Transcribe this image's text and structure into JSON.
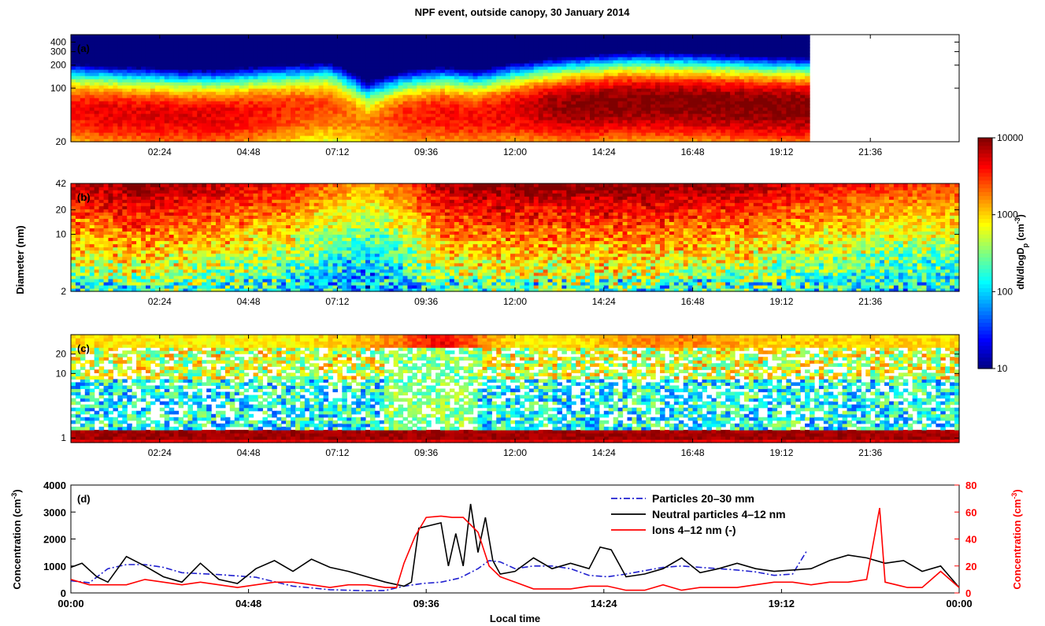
{
  "title": "NPF event, outside canopy, 30 January 2014",
  "y_label_shared": "Diameter  (nm)",
  "colors": {
    "colormap": [
      "#00007f",
      "#0000ff",
      "#007fff",
      "#00ffff",
      "#7fff7f",
      "#ffff00",
      "#ff7f00",
      "#ff0000",
      "#7f0000"
    ],
    "particles": "#2020d0",
    "neutral": "#000000",
    "ions": "#ff0000",
    "axis_right_d": "#ff0000"
  },
  "chart_data": [
    {
      "id": "a",
      "type": "heatmap",
      "panel_label": "(a)",
      "y_scale": "log",
      "ylim": [
        20,
        500
      ],
      "y_ticks": [
        20,
        100,
        200,
        300,
        400
      ],
      "x_ticks": [
        "02:24",
        "04:48",
        "07:12",
        "09:36",
        "12:00",
        "14:24",
        "16:48",
        "19:12",
        "21:36"
      ],
      "x_range_hours": [
        0,
        24
      ],
      "data_end_hour": 19.9,
      "time_hours": [
        0,
        1,
        2,
        3,
        4,
        5,
        6,
        7,
        8,
        9,
        10,
        11,
        12,
        13,
        14,
        15,
        16,
        17,
        18,
        19,
        19.9
      ],
      "mode_diameter_nm": [
        55,
        50,
        48,
        45,
        45,
        50,
        55,
        60,
        35,
        45,
        50,
        45,
        55,
        60,
        65,
        70,
        70,
        68,
        65,
        62,
        60
      ],
      "mode_level_log10": [
        3.6,
        3.7,
        3.7,
        3.7,
        3.7,
        3.6,
        3.5,
        3.4,
        3.2,
        3.5,
        3.6,
        3.6,
        3.7,
        3.9,
        4.0,
        4.0,
        4.0,
        4.0,
        4.0,
        4.0,
        4.0
      ]
    },
    {
      "id": "b",
      "type": "heatmap",
      "panel_label": "(b)",
      "y_scale": "log",
      "ylim": [
        2,
        42
      ],
      "y_ticks": [
        2,
        10,
        20,
        42
      ],
      "x_ticks": [
        "02:24",
        "04:48",
        "07:12",
        "09:36",
        "12:00",
        "14:24",
        "16:48",
        "19:12",
        "21:36"
      ],
      "x_range_hours": [
        0,
        24
      ],
      "time_hours": [
        0,
        1,
        2,
        3,
        4,
        5,
        6,
        7,
        8,
        9,
        10,
        11,
        12,
        13,
        14,
        15,
        16,
        17,
        18,
        19,
        20,
        21,
        22,
        23,
        24
      ],
      "upper_level_log10": [
        3.8,
        3.9,
        4.0,
        3.9,
        3.8,
        3.7,
        3.6,
        3.3,
        3.1,
        3.4,
        3.9,
        4.0,
        4.0,
        4.0,
        4.0,
        4.0,
        4.0,
        3.9,
        3.9,
        3.8,
        3.7,
        3.6,
        3.5,
        3.5,
        3.5
      ]
    },
    {
      "id": "c",
      "type": "heatmap",
      "panel_label": "(c)",
      "y_scale": "log",
      "ylim": [
        0.85,
        40
      ],
      "y_ticks": [
        1,
        10,
        20
      ],
      "x_ticks": [
        "02:24",
        "04:48",
        "07:12",
        "09:36",
        "12:00",
        "14:24",
        "16:48",
        "19:12",
        "21:36"
      ],
      "x_range_hours": [
        0,
        24
      ],
      "cluster_band_nm": [
        1.0,
        1.4
      ],
      "cluster_level_log10": 3.9,
      "time_hours": [
        0,
        2,
        4,
        6,
        8,
        9,
        10,
        11,
        12,
        14,
        16,
        18,
        20,
        22,
        24
      ],
      "upper_level_log10": [
        2.7,
        2.6,
        2.6,
        2.6,
        2.8,
        3.0,
        3.4,
        3.0,
        2.6,
        2.7,
        3.0,
        2.8,
        2.7,
        2.7,
        2.7
      ]
    },
    {
      "id": "d",
      "type": "line",
      "panel_label": "(d)",
      "xlabel": "Local time",
      "ylabel": "Concentration (cm",
      "ylabel_sup": "-3",
      "ylabel_end": ")",
      "ylabel_right": "Concentration (cm",
      "ylabel_right_sup": "-3",
      "ylabel_right_end": ")",
      "x_ticks": [
        "00:00",
        "04:48",
        "09:36",
        "14:24",
        "19:12",
        "00:00"
      ],
      "x_range_hours": [
        0,
        24
      ],
      "ylim": [
        0,
        4000
      ],
      "y_ticks": [
        0,
        1000,
        2000,
        3000,
        4000
      ],
      "ylim_right": [
        0,
        80
      ],
      "y_ticks_right": [
        0,
        20,
        40,
        60,
        80
      ],
      "series": [
        {
          "name": "Particles 20–30 mm",
          "axis": "left",
          "style": "dashdot",
          "x": [
            0,
            0.5,
            1,
            1.5,
            2,
            2.5,
            3,
            4,
            5,
            6,
            7,
            8,
            8.5,
            9,
            9.5,
            10,
            10.5,
            11,
            11.3,
            11.6,
            12,
            12.5,
            13,
            13.5,
            14,
            14.5,
            15,
            16,
            16.5,
            17,
            18,
            18.5,
            19,
            19.5,
            19.9
          ],
          "values": [
            450,
            380,
            900,
            1050,
            1050,
            950,
            750,
            680,
            580,
            250,
            120,
            80,
            90,
            250,
            350,
            400,
            550,
            900,
            1200,
            1150,
            900,
            1000,
            1000,
            900,
            650,
            600,
            700,
            950,
            1000,
            950,
            850,
            780,
            650,
            700,
            1600
          ]
        },
        {
          "name": "Neutral particles 4–12 nm",
          "axis": "left",
          "style": "solid",
          "x": [
            0,
            0.3,
            0.7,
            1,
            1.5,
            2,
            2.5,
            3,
            3.5,
            4,
            4.5,
            5,
            5.5,
            6,
            6.5,
            7,
            7.5,
            8,
            8.5,
            9,
            9.2,
            9.4,
            9.7,
            10,
            10.2,
            10.4,
            10.6,
            10.8,
            11,
            11.2,
            11.4,
            11.6,
            12,
            12.5,
            13,
            13.5,
            14,
            14.3,
            14.6,
            15,
            15.5,
            16,
            16.5,
            17,
            17.5,
            18,
            18.5,
            19,
            19.5,
            20,
            20.5,
            21,
            21.5,
            22,
            22.5,
            23,
            23.5,
            24
          ],
          "values": [
            950,
            1100,
            600,
            400,
            1350,
            1000,
            600,
            400,
            1100,
            500,
            350,
            900,
            1200,
            800,
            1250,
            950,
            800,
            600,
            400,
            250,
            400,
            2400,
            2500,
            2600,
            1000,
            2200,
            1000,
            3300,
            1500,
            2800,
            1200,
            700,
            800,
            1300,
            900,
            1100,
            900,
            1700,
            1600,
            600,
            700,
            900,
            1300,
            750,
            900,
            1100,
            900,
            800,
            850,
            900,
            1200,
            1400,
            1300,
            1100,
            1200,
            800,
            1000,
            200
          ]
        },
        {
          "name": "Ions 4–12 nm (-)",
          "axis": "right",
          "style": "solid",
          "x": [
            0,
            0.5,
            1,
            1.5,
            2,
            2.5,
            3,
            3.5,
            4,
            4.5,
            5,
            5.5,
            6,
            6.5,
            7,
            7.5,
            8,
            8.5,
            8.8,
            9,
            9.3,
            9.6,
            10,
            10.3,
            10.6,
            11,
            11.3,
            11.6,
            12,
            12.5,
            13,
            13.5,
            14,
            14.5,
            15,
            15.5,
            16,
            16.5,
            17,
            17.5,
            18,
            18.5,
            19,
            19.5,
            20,
            20.5,
            21,
            21.5,
            21.7,
            21.85,
            22,
            22.3,
            22.6,
            23,
            23.5,
            24
          ],
          "values": [
            10,
            6,
            6,
            6,
            10,
            8,
            6,
            8,
            6,
            4,
            6,
            8,
            8,
            6,
            4,
            6,
            6,
            4,
            4,
            22,
            42,
            56,
            57,
            56,
            56,
            45,
            20,
            12,
            8,
            3,
            3,
            3,
            5,
            5,
            2,
            2,
            6,
            2,
            4,
            4,
            4,
            6,
            8,
            8,
            6,
            8,
            8,
            10,
            40,
            63,
            8,
            6,
            4,
            4,
            16,
            4
          ]
        }
      ]
    }
  ],
  "colorbar": {
    "label": "dN/dlogD",
    "label_sub": "p",
    "label_unit": " (cm",
    "label_unit_sup": "-3",
    "label_unit_end": ")",
    "scale": "log",
    "range": [
      10,
      10000
    ],
    "ticks": [
      "10",
      "100",
      "1000",
      "10000"
    ]
  }
}
